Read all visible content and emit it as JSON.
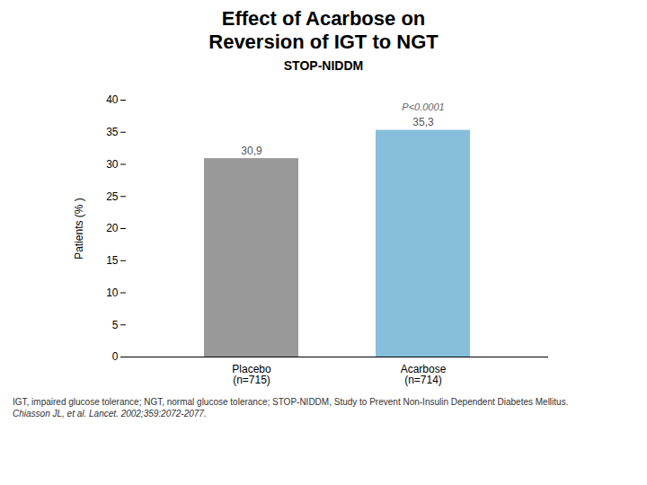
{
  "chart_data": {
    "type": "bar",
    "title": "Effect of Acarbose on\nReversion of IGT to NGT",
    "subtitle": "STOP-NIDDM",
    "categories": [
      "Placebo\n(n=715)",
      "Acarbose\n(n=714)"
    ],
    "values": [
      30.9,
      35.3
    ],
    "value_labels": [
      "30,9",
      "35,3"
    ],
    "data_labels": true,
    "colors": [
      "#999999",
      "#87BEDB"
    ],
    "ylabel": "Patients (% )",
    "ylim": [
      0,
      40
    ],
    "yticks": [
      0,
      5,
      10,
      15,
      20,
      25,
      30,
      35,
      40
    ],
    "grid": false,
    "annotations": [
      {
        "text": "P<0.0001",
        "category": "Acarbose\n(n=714)"
      }
    ],
    "footnotes": [
      "IGT, impaired glucose tolerance; NGT, normal glucose tolerance; STOP-NIDDM, Study to Prevent Non-Insulin Dependent Diabetes Mellitus.",
      "Chiasson JL, et al. Lancet. 2002;359:2072-2077."
    ]
  }
}
